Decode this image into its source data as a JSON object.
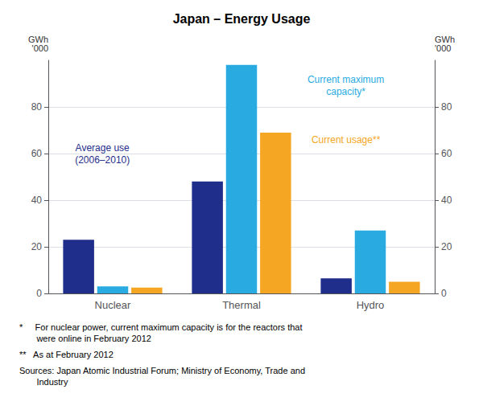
{
  "chart_data": {
    "type": "bar",
    "title": "Japan – Energy Usage",
    "categories": [
      "Nuclear",
      "Thermal",
      "Hydro"
    ],
    "series": [
      {
        "name": "Average use\n(2006–2010)",
        "color": "#1f2e8a",
        "values": [
          23,
          48,
          6.5
        ]
      },
      {
        "name": "Current maximum\ncapacity*",
        "color": "#29abe2",
        "values": [
          3,
          98,
          27
        ]
      },
      {
        "name": "Current usage**",
        "color": "#f5a623",
        "values": [
          2.5,
          69,
          5
        ]
      }
    ],
    "ylabel": "GWh\n'000",
    "y2label": "GWh\n'000",
    "ylim": [
      0,
      100
    ],
    "yticks": [
      0,
      20,
      40,
      60,
      80
    ],
    "y2lim": [
      0,
      100
    ],
    "y2ticks": [
      0,
      20,
      40,
      60,
      80
    ],
    "grid": true,
    "footnotes": [
      "*     For nuclear power, current maximum capacity is for the reactors that\n       were online in February 2012",
      "**   As at February 2012",
      "Sources: Japan Atomic Industrial Forum; Ministry of Economy, Trade and\n       Industry"
    ]
  }
}
